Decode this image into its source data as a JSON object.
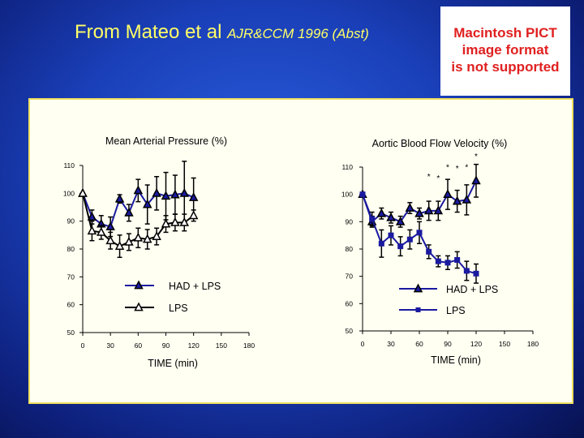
{
  "slide": {
    "title_main": "From Mateo et al ",
    "title_cite": "AJR&CCM 1996 (Abst)",
    "pict_message": [
      "Macintosh PICT",
      "image format",
      "is not supported"
    ]
  },
  "chart_data": [
    {
      "type": "line",
      "title": "Mean Arterial Pressure (%)",
      "xlabel": "TIME (min)",
      "ylabel": "",
      "xlim": [
        0,
        180
      ],
      "ylim": [
        50,
        110
      ],
      "xticks": [
        0,
        30,
        60,
        90,
        120,
        150,
        180
      ],
      "yticks": [
        50,
        60,
        70,
        80,
        90,
        100,
        110
      ],
      "legend": "center",
      "series": [
        {
          "name": "HAD + LPS",
          "marker": "filled-triangle",
          "x": [
            0,
            10,
            20,
            30,
            40,
            50,
            60,
            70,
            80,
            90,
            100,
            110,
            120
          ],
          "y": [
            100,
            91.5,
            89,
            88,
            98,
            93,
            101,
            96,
            100,
            99,
            99.5,
            100,
            98.5
          ],
          "err": [
            0,
            2.5,
            3,
            3.5,
            1.5,
            3,
            4,
            7,
            6,
            8.5,
            7,
            11.5,
            7
          ]
        },
        {
          "name": "LPS",
          "marker": "open-triangle",
          "x": [
            0,
            10,
            20,
            30,
            40,
            50,
            60,
            70,
            80,
            90,
            100,
            110,
            120
          ],
          "y": [
            100,
            86.5,
            86,
            83,
            81,
            82.5,
            84,
            83.5,
            84.5,
            89,
            89.5,
            89.5,
            92
          ],
          "err": [
            0,
            3.5,
            2.5,
            3,
            4,
            3,
            3.5,
            3.5,
            3,
            3,
            3,
            3,
            2
          ]
        }
      ],
      "annotations": []
    },
    {
      "type": "line",
      "title": "Aortic Blood Flow Velocity (%)",
      "xlabel": "TIME (min)",
      "ylabel": "",
      "xlim": [
        0,
        180
      ],
      "ylim": [
        50,
        110
      ],
      "xticks": [
        0,
        30,
        60,
        90,
        120,
        150,
        180
      ],
      "yticks": [
        50,
        60,
        70,
        80,
        90,
        100,
        110
      ],
      "legend": "bottom-right",
      "series": [
        {
          "name": "HAD + LPS",
          "marker": "filled-triangle",
          "x": [
            0,
            10,
            20,
            30,
            40,
            50,
            60,
            70,
            80,
            90,
            100,
            110,
            120
          ],
          "y": [
            100,
            90,
            93,
            91.5,
            90,
            95,
            93,
            94,
            94,
            100,
            97.5,
            98,
            105
          ],
          "err": [
            0,
            2,
            2,
            2,
            2,
            2,
            2,
            3.5,
            3.5,
            5.5,
            4,
            5.5,
            6
          ]
        },
        {
          "name": "LPS",
          "marker": "square",
          "x": [
            0,
            10,
            20,
            30,
            40,
            50,
            60,
            70,
            80,
            90,
            100,
            110,
            120
          ],
          "y": [
            100,
            91,
            82,
            85,
            81,
            83.5,
            86,
            79,
            75.5,
            75,
            76,
            72,
            71
          ],
          "err": [
            0,
            2.5,
            5,
            3.5,
            3.5,
            3.5,
            4,
            2.5,
            2,
            2.5,
            3,
            3.5,
            3.5
          ]
        }
      ],
      "annotations": [
        {
          "text": "*",
          "x": 70,
          "y": 105.5
        },
        {
          "text": "*",
          "x": 80,
          "y": 105
        },
        {
          "text": "*",
          "x": 90,
          "y": 109
        },
        {
          "text": "*",
          "x": 100,
          "y": 108.5
        },
        {
          "text": "*",
          "x": 110,
          "y": 109
        },
        {
          "text": "*",
          "x": 120,
          "y": 113
        }
      ]
    }
  ]
}
